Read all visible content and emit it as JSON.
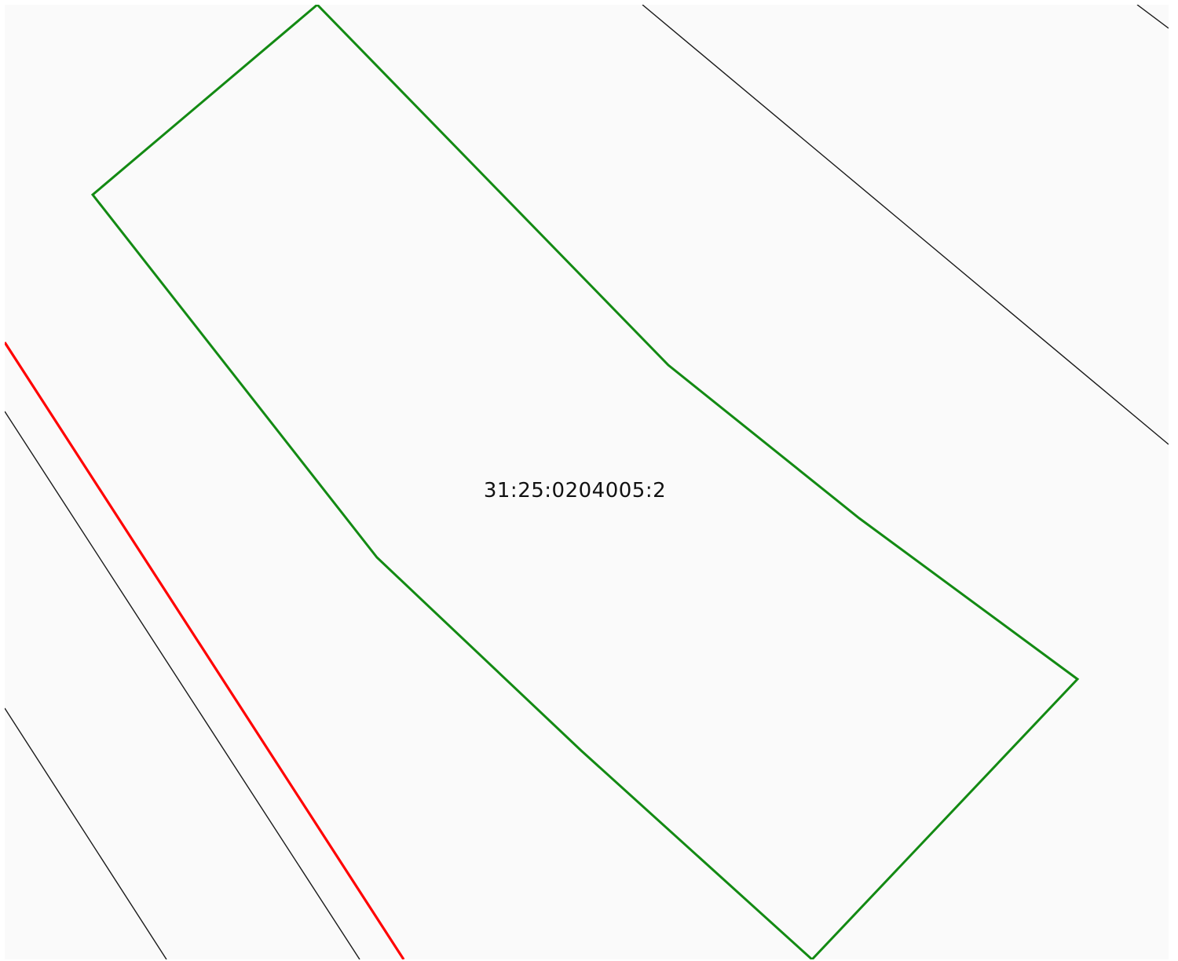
{
  "map": {
    "parcel": {
      "cadastral_number": "31:25:0204005:2",
      "outline_color": "#138a13"
    },
    "colors": {
      "background": "#fafafa",
      "neighbor_lines": "#1a1a1a",
      "boundary_line": "#ff0000",
      "label_text": "#111111"
    }
  }
}
